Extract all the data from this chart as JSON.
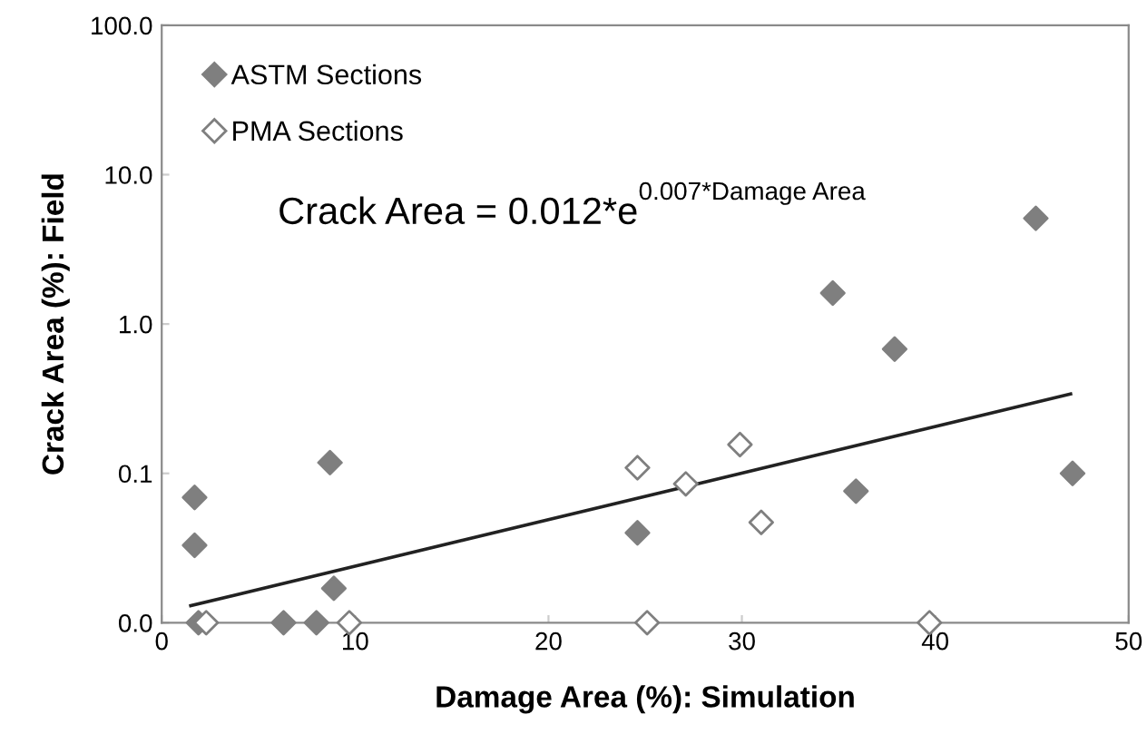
{
  "chart_data": {
    "type": "scatter",
    "xlabel": "Damage Area (%): Simulation",
    "ylabel": "Crack Area (%): Field",
    "annotations": [
      "Crack Area = 0.012*e$^{0.007*Damage Area}$"
    ],
    "log": "y",
    "xlim": [
      0,
      50
    ],
    "xticks": [
      0,
      10,
      20,
      30,
      40,
      50
    ],
    "ylim": [
      0.01,
      100
    ],
    "yticks": [
      {
        "value": 0.01,
        "label": "0.0"
      },
      {
        "value": 0.1,
        "label": "0.1"
      },
      {
        "value": 1,
        "label": "1.0"
      },
      {
        "value": 10,
        "label": "10.0"
      },
      {
        "value": 100,
        "label": "100.0"
      }
    ],
    "grid": false,
    "legend": "top left",
    "marker": "diamond",
    "series": [
      {
        "name": "ASTM Sections",
        "color": "#7f7f7f",
        "x": [
          1.7,
          1.7,
          1.9,
          6.3,
          8.0,
          8.7,
          8.9,
          24.6,
          34.7,
          37.9,
          45.2,
          35.9,
          47.1
        ],
        "values": [
          0.069,
          0.033,
          0.01,
          0.01,
          0.01,
          0.118,
          0.017,
          0.04,
          1.61,
          0.68,
          5.1,
          0.076,
          0.1
        ]
      },
      {
        "name": "PMA Sections",
        "color": "#ffffff",
        "x": [
          2.3,
          9.7,
          25.1,
          39.7,
          24.6,
          27.1,
          29.9,
          31.0
        ],
        "values": [
          0.01,
          0.01,
          0.01,
          0.01,
          0.109,
          0.085,
          0.156,
          0.047
        ]
      },
      {
        "type": "line",
        "marker": "none",
        "color": "#222222",
        "x": [
          1.5,
          47
        ],
        "values": [
          0.013,
          0.34
        ]
      }
    ]
  }
}
